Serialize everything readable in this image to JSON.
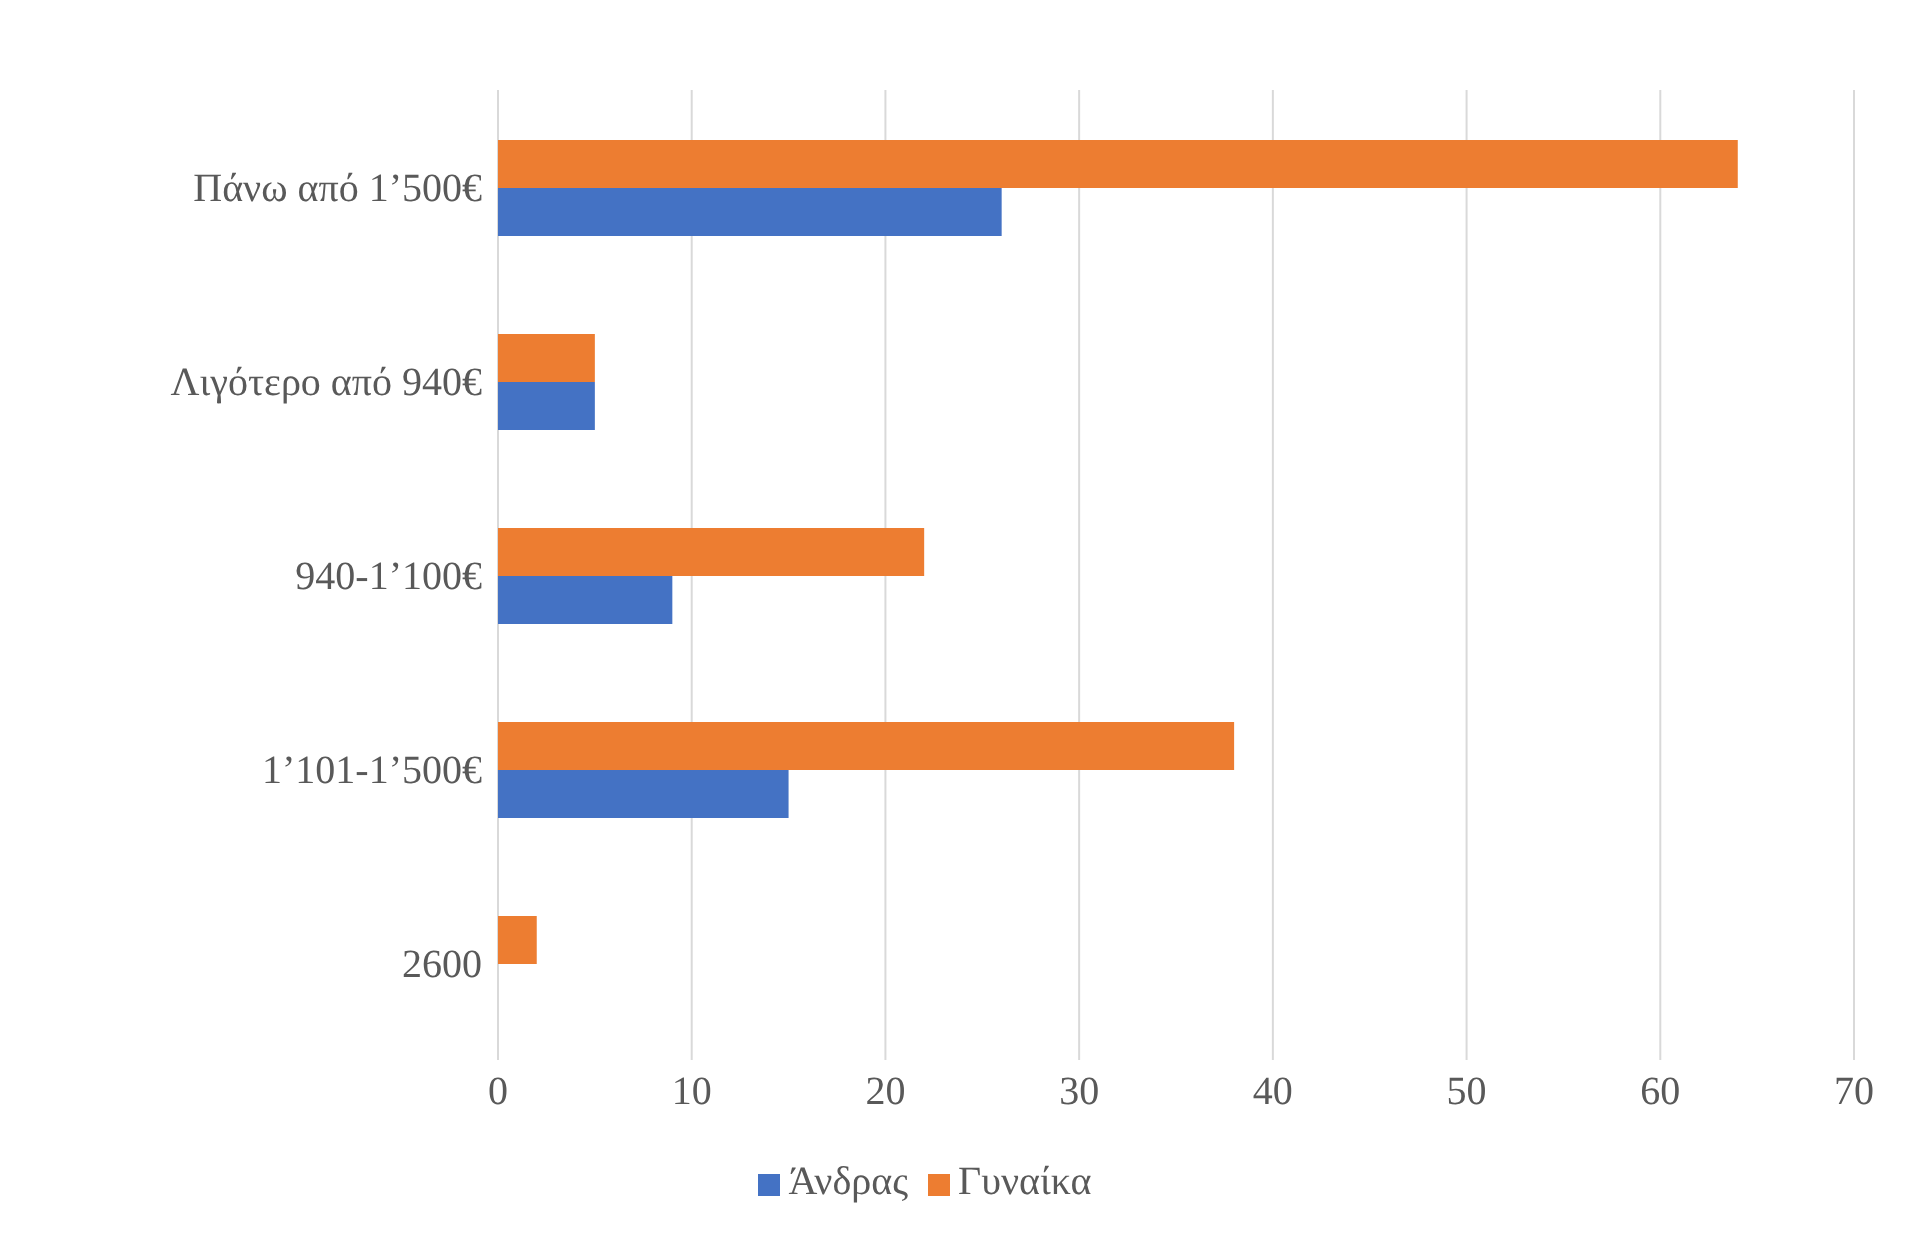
{
  "chart_data": {
    "type": "bar",
    "orientation": "horizontal",
    "categories": [
      "Πάνω από 1’500€",
      "Λιγότερο από 940€",
      "940-1’100€",
      "1’101-1’500€",
      "2600"
    ],
    "series": [
      {
        "name": "Γυναίκα",
        "color": "#ed7d31",
        "values": [
          64,
          5,
          22,
          38,
          2
        ]
      },
      {
        "name": "Άνδρας",
        "color": "#4472c4",
        "values": [
          26,
          5,
          9,
          15,
          null
        ]
      }
    ],
    "xlim": [
      0,
      70
    ],
    "xticks": [
      0,
      10,
      20,
      30,
      40,
      50,
      60,
      70
    ],
    "grid": "x",
    "legend": "bottom"
  }
}
